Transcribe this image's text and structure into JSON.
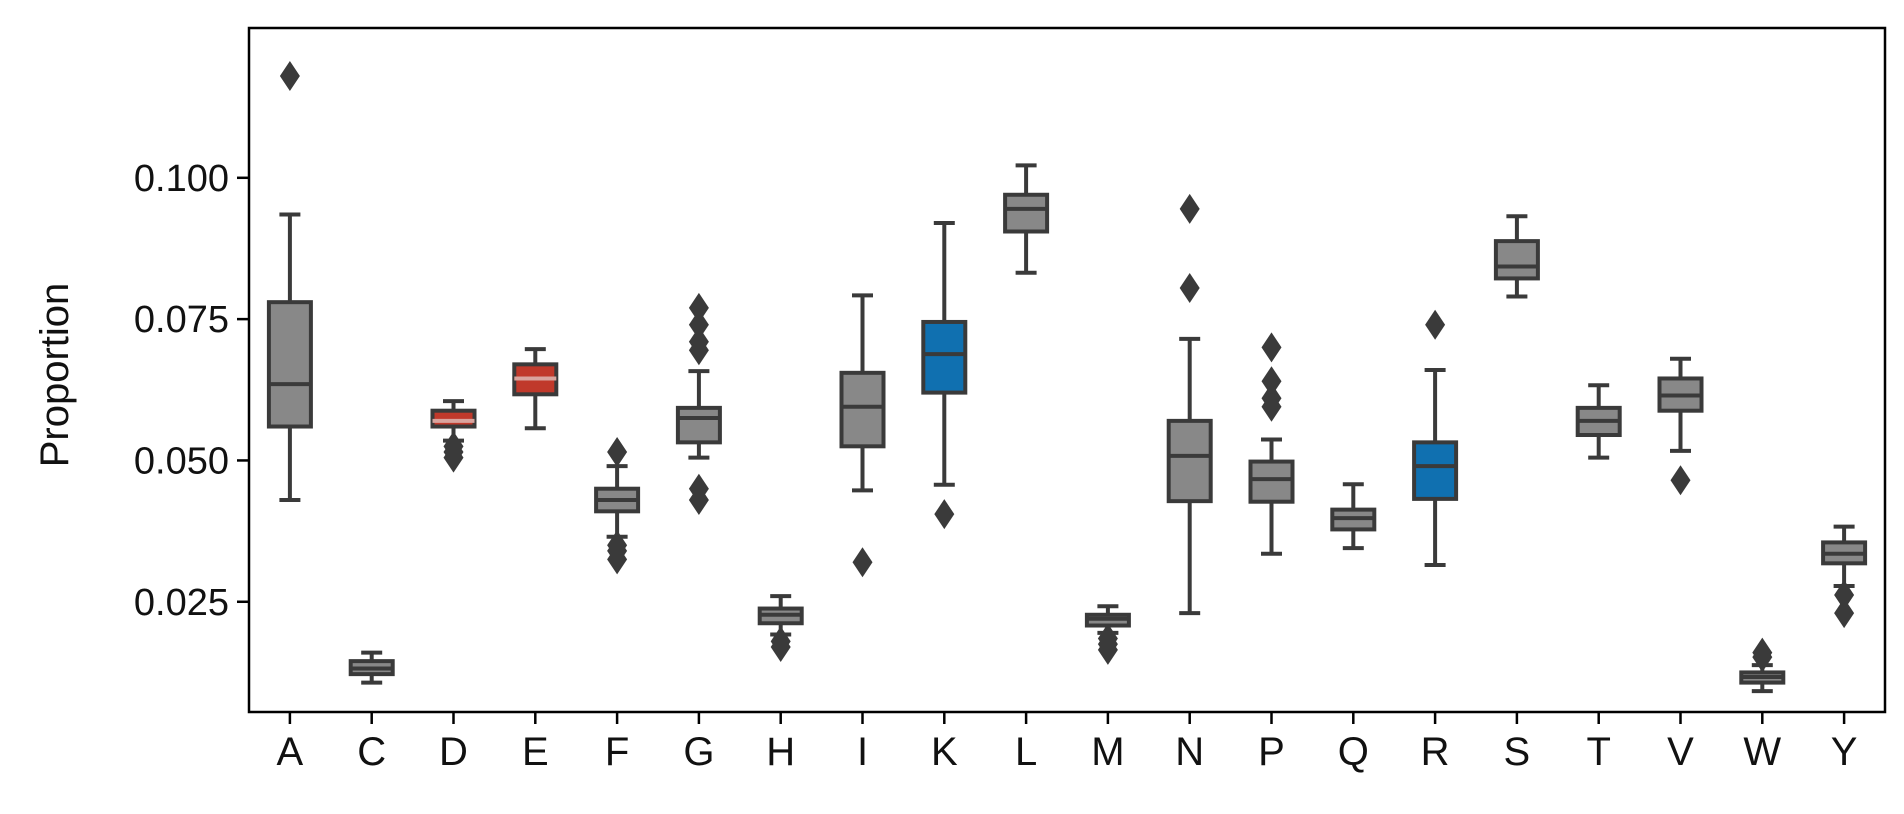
{
  "chart_data": {
    "type": "box",
    "title": "",
    "xlabel": "",
    "ylabel": "Proportion",
    "ylim": [
      0.0055,
      0.1265
    ],
    "yticks": [
      "0.025",
      "0.050",
      "0.075",
      "0.100"
    ],
    "ytick_values": [
      0.025,
      0.05,
      0.075,
      0.1
    ],
    "grid": false,
    "colors": {
      "default": "#888888",
      "acidic": "#c0392b",
      "basic": "#1070b0",
      "edge": "#3a3a3a"
    },
    "categories": [
      "A",
      "C",
      "D",
      "E",
      "F",
      "G",
      "H",
      "I",
      "K",
      "L",
      "M",
      "N",
      "P",
      "Q",
      "R",
      "S",
      "T",
      "V",
      "W",
      "Y"
    ],
    "boxes": [
      {
        "label": "A",
        "color": "default",
        "whisker_low": 0.043,
        "q1": 0.056,
        "median": 0.0635,
        "q3": 0.078,
        "whisker_high": 0.0935,
        "outliers": [
          0.118
        ]
      },
      {
        "label": "C",
        "color": "default",
        "whisker_low": 0.0107,
        "q1": 0.0122,
        "median": 0.0132,
        "q3": 0.0145,
        "whisker_high": 0.016,
        "outliers": []
      },
      {
        "label": "D",
        "color": "acidic",
        "whisker_low": 0.0535,
        "q1": 0.056,
        "median": 0.057,
        "q3": 0.0588,
        "whisker_high": 0.0605,
        "outliers": [
          0.0525,
          0.0515,
          0.0505
        ]
      },
      {
        "label": "E",
        "color": "acidic",
        "whisker_low": 0.0557,
        "q1": 0.0617,
        "median": 0.0645,
        "q3": 0.067,
        "whisker_high": 0.0697,
        "outliers": []
      },
      {
        "label": "F",
        "color": "default",
        "whisker_low": 0.0365,
        "q1": 0.041,
        "median": 0.043,
        "q3": 0.045,
        "whisker_high": 0.049,
        "outliers": [
          0.0515,
          0.035,
          0.034,
          0.0325
        ]
      },
      {
        "label": "G",
        "color": "default",
        "whisker_low": 0.0505,
        "q1": 0.0532,
        "median": 0.0575,
        "q3": 0.0593,
        "whisker_high": 0.0658,
        "outliers": [
          0.077,
          0.074,
          0.071,
          0.0695,
          0.045,
          0.043
        ]
      },
      {
        "label": "H",
        "color": "default",
        "whisker_low": 0.0192,
        "q1": 0.0212,
        "median": 0.0227,
        "q3": 0.0238,
        "whisker_high": 0.026,
        "outliers": [
          0.018,
          0.017
        ]
      },
      {
        "label": "I",
        "color": "default",
        "whisker_low": 0.0447,
        "q1": 0.0525,
        "median": 0.0595,
        "q3": 0.0655,
        "whisker_high": 0.0792,
        "outliers": [
          0.032
        ]
      },
      {
        "label": "K",
        "color": "basic",
        "whisker_low": 0.0457,
        "q1": 0.062,
        "median": 0.0688,
        "q3": 0.0745,
        "whisker_high": 0.092,
        "outliers": [
          0.0405
        ]
      },
      {
        "label": "L",
        "color": "default",
        "whisker_low": 0.0832,
        "q1": 0.0905,
        "median": 0.0945,
        "q3": 0.097,
        "whisker_high": 0.1022,
        "outliers": []
      },
      {
        "label": "M",
        "color": "default",
        "whisker_low": 0.0195,
        "q1": 0.0208,
        "median": 0.022,
        "q3": 0.0227,
        "whisker_high": 0.0242,
        "outliers": [
          0.0185,
          0.0175,
          0.0165
        ]
      },
      {
        "label": "N",
        "color": "default",
        "whisker_low": 0.023,
        "q1": 0.0428,
        "median": 0.0508,
        "q3": 0.057,
        "whisker_high": 0.0715,
        "outliers": [
          0.0945,
          0.0805
        ]
      },
      {
        "label": "P",
        "color": "default",
        "whisker_low": 0.0335,
        "q1": 0.0427,
        "median": 0.0467,
        "q3": 0.0498,
        "whisker_high": 0.0537,
        "outliers": [
          0.07,
          0.064,
          0.061,
          0.0595
        ]
      },
      {
        "label": "Q",
        "color": "default",
        "whisker_low": 0.0345,
        "q1": 0.0378,
        "median": 0.0398,
        "q3": 0.0413,
        "whisker_high": 0.0458,
        "outliers": []
      },
      {
        "label": "R",
        "color": "basic",
        "whisker_low": 0.0315,
        "q1": 0.0432,
        "median": 0.049,
        "q3": 0.0532,
        "whisker_high": 0.066,
        "outliers": [
          0.074
        ]
      },
      {
        "label": "S",
        "color": "default",
        "whisker_low": 0.079,
        "q1": 0.0822,
        "median": 0.0843,
        "q3": 0.0888,
        "whisker_high": 0.0932,
        "outliers": []
      },
      {
        "label": "T",
        "color": "default",
        "whisker_low": 0.0505,
        "q1": 0.0545,
        "median": 0.057,
        "q3": 0.0593,
        "whisker_high": 0.0633,
        "outliers": []
      },
      {
        "label": "V",
        "color": "default",
        "whisker_low": 0.0517,
        "q1": 0.0588,
        "median": 0.0615,
        "q3": 0.0645,
        "whisker_high": 0.068,
        "outliers": [
          0.0465
        ]
      },
      {
        "label": "W",
        "color": "default",
        "whisker_low": 0.0092,
        "q1": 0.0107,
        "median": 0.0117,
        "q3": 0.0125,
        "whisker_high": 0.0138,
        "outliers": [
          0.016,
          0.0152
        ]
      },
      {
        "label": "Y",
        "color": "default",
        "whisker_low": 0.0278,
        "q1": 0.0318,
        "median": 0.0335,
        "q3": 0.0355,
        "whisker_high": 0.0383,
        "outliers": [
          0.0262,
          0.023
        ]
      }
    ]
  }
}
